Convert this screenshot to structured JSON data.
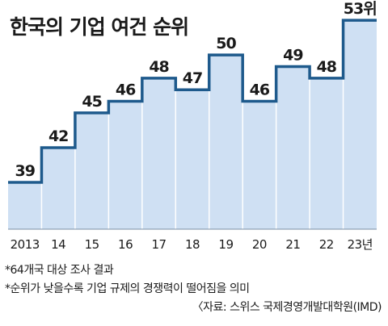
{
  "chart_data": {
    "type": "step-area",
    "title": "한국의 기업 여건 순위",
    "categories": [
      "2013",
      "14",
      "15",
      "16",
      "17",
      "18",
      "19",
      "20",
      "21",
      "22",
      "23년"
    ],
    "values": [
      39,
      42,
      45,
      46,
      48,
      47,
      50,
      46,
      49,
      48,
      53
    ],
    "value_labels": [
      "39",
      "42",
      "45",
      "46",
      "48",
      "47",
      "50",
      "46",
      "49",
      "48",
      "53위"
    ],
    "fill_color": "#cfe0f3",
    "line_color": "#1e5a8c",
    "grid": false,
    "legend": "none"
  },
  "notes": [
    "*64개국 대상 조사 결과",
    "*순위가 낮을수록 기업 규제의 경쟁력이 떨어짐을 의미"
  ],
  "source": "〈자료: 스위스 국제경영개발대학원(IMD)"
}
